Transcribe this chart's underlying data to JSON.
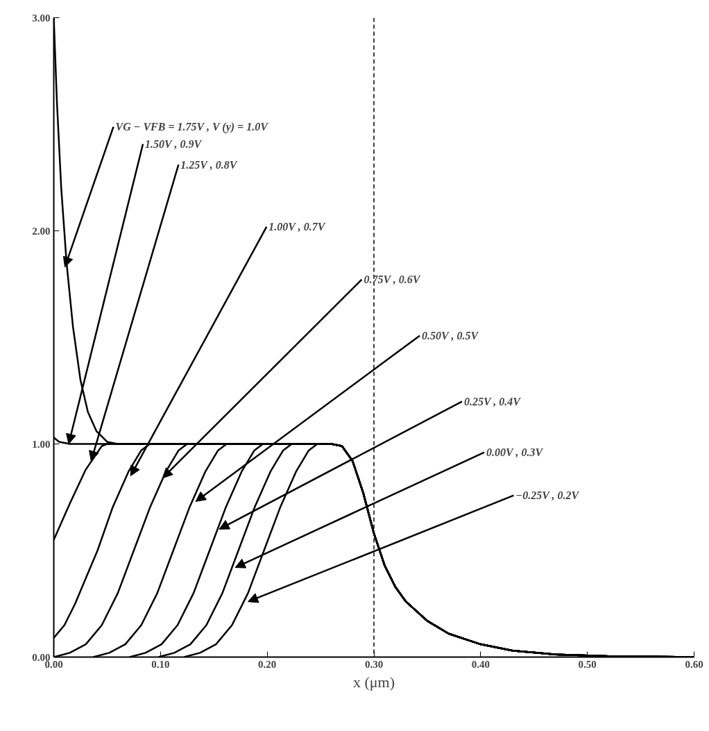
{
  "chart_data": {
    "type": "line",
    "xlabel": "x (μm)",
    "xlim": [
      0,
      0.6
    ],
    "ylim": [
      0,
      3
    ],
    "xticks": [
      {
        "value": 0,
        "label": "0.00"
      },
      {
        "value": 0.1,
        "label": "0.10"
      },
      {
        "value": 0.2,
        "label": "0.20"
      },
      {
        "value": 0.3,
        "label": "0.30"
      },
      {
        "value": 0.4,
        "label": "0.40"
      },
      {
        "value": 0.5,
        "label": "0.50"
      },
      {
        "value": 0.6,
        "label": "0.60"
      }
    ],
    "yticks": [
      {
        "value": 0,
        "label": "0.00"
      },
      {
        "value": 1,
        "label": "1.00"
      },
      {
        "value": 2,
        "label": "2.00"
      },
      {
        "value": 3,
        "label": "3.00"
      }
    ],
    "grid": false,
    "marker": "none",
    "line_style": "solid",
    "series": [
      {
        "color": "#000000",
        "x": [
          0,
          0.003,
          0.007,
          0.012,
          0.018,
          0.025,
          0.032,
          0.04,
          0.05,
          0.06,
          0.26,
          0.27,
          0.28,
          0.29,
          0.3,
          0.31,
          0.32,
          0.33,
          0.35,
          0.37,
          0.4,
          0.43,
          0.47,
          0.52,
          0.6
        ],
        "values": [
          3.0,
          2.6,
          2.2,
          1.85,
          1.55,
          1.3,
          1.15,
          1.06,
          1.01,
          1.0,
          1.0,
          0.99,
          0.92,
          0.77,
          0.58,
          0.43,
          0.33,
          0.26,
          0.17,
          0.11,
          0.06,
          0.03,
          0.012,
          0.004,
          0
        ]
      },
      {
        "color": "#000000",
        "x": [
          0,
          0.005,
          0.015,
          0.26,
          0.27,
          0.28,
          0.29,
          0.3,
          0.31,
          0.32,
          0.33,
          0.35,
          0.37,
          0.4,
          0.43,
          0.47,
          0.52,
          0.6
        ],
        "values": [
          1.03,
          1.01,
          1.0,
          1.0,
          0.99,
          0.92,
          0.77,
          0.58,
          0.43,
          0.33,
          0.26,
          0.17,
          0.11,
          0.06,
          0.03,
          0.012,
          0.004,
          0
        ]
      },
      {
        "color": "#000000",
        "x": [
          0,
          0.015,
          0.03,
          0.045,
          0.05,
          0.26,
          0.27,
          0.28,
          0.29,
          0.3,
          0.31,
          0.32,
          0.33,
          0.35,
          0.37,
          0.4,
          0.43,
          0.47,
          0.52,
          0.6
        ],
        "values": [
          0.55,
          0.72,
          0.88,
          0.99,
          1.0,
          1.0,
          0.99,
          0.92,
          0.77,
          0.58,
          0.43,
          0.33,
          0.26,
          0.17,
          0.11,
          0.06,
          0.03,
          0.012,
          0.004,
          0
        ]
      },
      {
        "color": "#000000",
        "x": [
          0,
          0.01,
          0.02,
          0.03,
          0.041,
          0.055,
          0.07,
          0.082,
          0.09,
          0.26,
          0.27,
          0.28,
          0.29,
          0.3,
          0.31,
          0.32,
          0.33,
          0.35,
          0.37,
          0.4,
          0.43,
          0.47,
          0.52,
          0.6
        ],
        "values": [
          0.09,
          0.15,
          0.25,
          0.37,
          0.5,
          0.7,
          0.87,
          0.97,
          1.0,
          1.0,
          0.99,
          0.92,
          0.77,
          0.58,
          0.43,
          0.33,
          0.26,
          0.17,
          0.11,
          0.06,
          0.03,
          0.012,
          0.004,
          0
        ]
      },
      {
        "color": "#000000",
        "x": [
          0,
          0.015,
          0.03,
          0.045,
          0.06,
          0.075,
          0.09,
          0.105,
          0.117,
          0.125,
          0.26,
          0.27,
          0.28,
          0.29,
          0.3,
          0.31,
          0.32,
          0.33,
          0.35,
          0.37,
          0.4,
          0.43,
          0.47,
          0.52,
          0.6
        ],
        "values": [
          0.0,
          0.02,
          0.06,
          0.15,
          0.3,
          0.5,
          0.7,
          0.87,
          0.97,
          1.0,
          1.0,
          0.99,
          0.92,
          0.77,
          0.58,
          0.43,
          0.33,
          0.26,
          0.17,
          0.11,
          0.06,
          0.03,
          0.012,
          0.004,
          0
        ]
      },
      {
        "color": "#000000",
        "x": [
          0.037,
          0.052,
          0.067,
          0.082,
          0.097,
          0.112,
          0.127,
          0.142,
          0.154,
          0.162,
          0.26,
          0.27,
          0.28,
          0.29,
          0.3,
          0.31,
          0.32,
          0.33,
          0.35,
          0.37,
          0.4,
          0.43,
          0.47,
          0.52,
          0.6
        ],
        "values": [
          0,
          0.02,
          0.06,
          0.15,
          0.3,
          0.5,
          0.7,
          0.87,
          0.97,
          1.0,
          1.0,
          0.99,
          0.92,
          0.77,
          0.58,
          0.43,
          0.33,
          0.26,
          0.17,
          0.11,
          0.06,
          0.03,
          0.012,
          0.004,
          0
        ]
      },
      {
        "color": "#000000",
        "x": [
          0.071,
          0.086,
          0.101,
          0.116,
          0.131,
          0.146,
          0.161,
          0.176,
          0.188,
          0.196,
          0.26,
          0.27,
          0.28,
          0.29,
          0.3,
          0.31,
          0.32,
          0.33,
          0.35,
          0.37,
          0.4,
          0.43,
          0.47,
          0.52,
          0.6
        ],
        "values": [
          0,
          0.02,
          0.06,
          0.15,
          0.3,
          0.5,
          0.7,
          0.87,
          0.97,
          1.0,
          1.0,
          0.99,
          0.92,
          0.77,
          0.58,
          0.43,
          0.33,
          0.26,
          0.17,
          0.11,
          0.06,
          0.03,
          0.012,
          0.004,
          0
        ]
      },
      {
        "color": "#000000",
        "x": [
          0.098,
          0.113,
          0.128,
          0.143,
          0.158,
          0.173,
          0.188,
          0.203,
          0.215,
          0.223,
          0.26,
          0.27,
          0.28,
          0.29,
          0.3,
          0.31,
          0.32,
          0.33,
          0.35,
          0.37,
          0.4,
          0.43,
          0.47,
          0.52,
          0.6
        ],
        "values": [
          0,
          0.02,
          0.06,
          0.15,
          0.3,
          0.5,
          0.7,
          0.87,
          0.97,
          1.0,
          1.0,
          0.99,
          0.92,
          0.77,
          0.58,
          0.43,
          0.33,
          0.26,
          0.17,
          0.11,
          0.06,
          0.03,
          0.012,
          0.004,
          0
        ]
      },
      {
        "color": "#000000",
        "x": [
          0.122,
          0.137,
          0.152,
          0.167,
          0.182,
          0.197,
          0.212,
          0.227,
          0.239,
          0.247,
          0.26,
          0.27,
          0.28,
          0.29,
          0.3,
          0.31,
          0.32,
          0.33,
          0.35,
          0.37,
          0.4,
          0.43,
          0.47,
          0.52,
          0.6
        ],
        "values": [
          0,
          0.02,
          0.06,
          0.15,
          0.3,
          0.5,
          0.7,
          0.87,
          0.97,
          1.0,
          1.0,
          0.99,
          0.92,
          0.77,
          0.58,
          0.43,
          0.33,
          0.26,
          0.17,
          0.11,
          0.06,
          0.03,
          0.012,
          0.004,
          0
        ]
      }
    ],
    "ref_lines": [
      {
        "axis": "x",
        "value": 0.3,
        "label": null,
        "color": "#000000",
        "line_style": "dashed"
      }
    ],
    "annotations": [
      {
        "text": "VG − VFB = 1.75V , V (y) = 1.0V",
        "x": 0.0104,
        "y": 1.83
      },
      {
        "text": "1.50V , 0.9V",
        "x": 0.014,
        "y": 1.0
      },
      {
        "text": "1.25V , 0.8V",
        "x": 0.035,
        "y": 0.92
      },
      {
        "text": "1.00V , 0.7V",
        "x": 0.072,
        "y": 0.85
      },
      {
        "text": "0.75V , 0.6V",
        "x": 0.102,
        "y": 0.84
      },
      {
        "text": "0.50V , 0.5V",
        "x": 0.133,
        "y": 0.73
      },
      {
        "text": "0.25V , 0.4V",
        "x": 0.155,
        "y": 0.6
      },
      {
        "text": "0.00V , 0.3V",
        "x": 0.17,
        "y": 0.42
      },
      {
        "text": "−0.25V , 0.2V",
        "x": 0.182,
        "y": 0.26
      }
    ]
  }
}
